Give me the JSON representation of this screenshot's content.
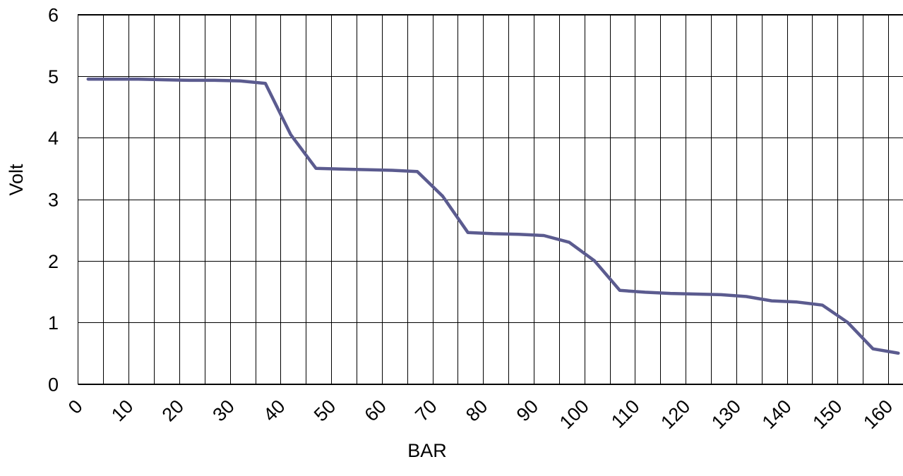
{
  "chart_data": {
    "type": "line",
    "xlabel": "BAR",
    "ylabel": "Volt",
    "xlim": [
      0,
      163
    ],
    "ylim": [
      0,
      6
    ],
    "x_ticks": [
      0,
      10,
      20,
      30,
      40,
      50,
      60,
      70,
      80,
      90,
      100,
      110,
      120,
      130,
      140,
      150,
      160
    ],
    "y_ticks": [
      0,
      1,
      2,
      3,
      4,
      5,
      6
    ],
    "x_grid_step": 5,
    "grid": true,
    "legend": "none",
    "series": [
      {
        "color": "#5b5b8f",
        "x": [
          2,
          7,
          12,
          17,
          22,
          27,
          32,
          37,
          42,
          47,
          52,
          57,
          62,
          67,
          72,
          77,
          82,
          87,
          92,
          97,
          102,
          107,
          112,
          117,
          122,
          127,
          132,
          137,
          142,
          147,
          152,
          157,
          162
        ],
        "y": [
          4.95,
          4.95,
          4.95,
          4.94,
          4.93,
          4.93,
          4.92,
          4.88,
          4.05,
          3.5,
          3.49,
          3.48,
          3.47,
          3.45,
          3.05,
          2.46,
          2.44,
          2.43,
          2.41,
          2.3,
          2.0,
          1.52,
          1.49,
          1.47,
          1.46,
          1.45,
          1.42,
          1.35,
          1.33,
          1.28,
          1.0,
          0.57,
          0.5
        ]
      }
    ]
  }
}
